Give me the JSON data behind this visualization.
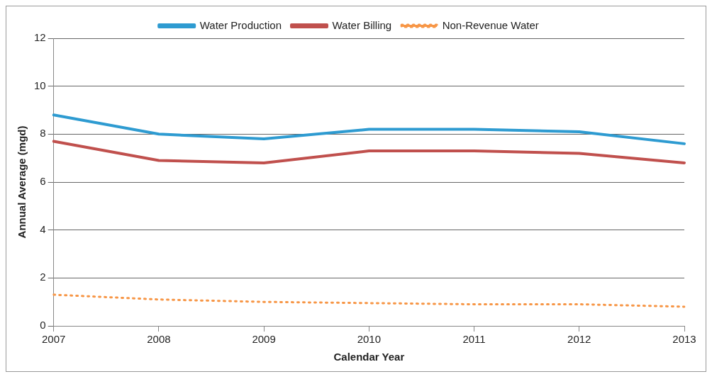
{
  "chart_data": {
    "type": "line",
    "xlabel": "Calendar Year",
    "ylabel": "Annual Average (mgd)",
    "categories": [
      "2007",
      "2008",
      "2009",
      "2010",
      "2011",
      "2012",
      "2013"
    ],
    "series": [
      {
        "name": "Water Production",
        "color": "#2e9bd1",
        "values": [
          8.8,
          8.0,
          7.8,
          8.2,
          8.2,
          8.1,
          7.6
        ]
      },
      {
        "name": "Water Billing",
        "color": "#c0504d",
        "values": [
          7.7,
          6.9,
          6.8,
          7.3,
          7.3,
          7.2,
          6.8
        ]
      },
      {
        "name": "Non-Revenue Water",
        "color": "#f79646",
        "line_style": "dotted",
        "values": [
          1.3,
          1.1,
          1.0,
          0.95,
          0.9,
          0.9,
          0.8
        ]
      }
    ],
    "ylim": [
      0,
      12
    ],
    "yticks": [
      0,
      2,
      4,
      6,
      8,
      10,
      12
    ],
    "grid": "y",
    "legend": "top",
    "marker": "none",
    "line_style": "solid"
  }
}
